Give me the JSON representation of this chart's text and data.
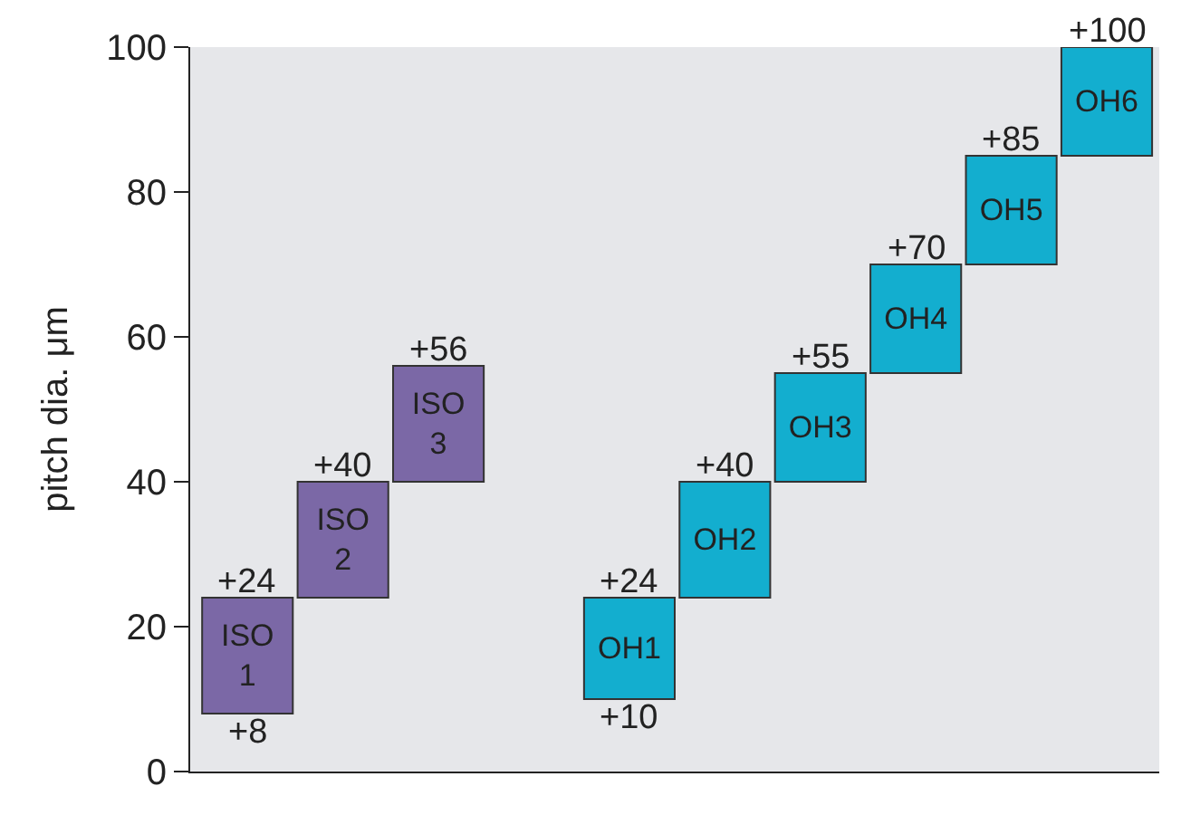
{
  "chart_data": {
    "type": "bar",
    "ylabel": "pitch dia. μm",
    "categories": [
      "ISO\n1",
      "ISO\n2",
      "ISO\n3",
      null,
      "OH1",
      "OH2",
      "OH3",
      "OH4",
      "OH5",
      "OH6"
    ],
    "base": [
      8,
      24,
      40,
      null,
      10,
      24,
      40,
      55,
      70,
      85
    ],
    "values": [
      16,
      16,
      16,
      null,
      14,
      16,
      15,
      15,
      15,
      15
    ],
    "colors": [
      "#7b68a6",
      "#7b68a6",
      "#7b68a6",
      null,
      "#13aecf",
      "#13aecf",
      "#13aecf",
      "#13aecf",
      "#13aecf",
      "#13aecf"
    ],
    "value_labels": [
      "+24",
      "+40",
      "+56",
      null,
      "+24",
      "+40",
      "+55",
      "+70",
      "+85",
      "+100"
    ],
    "annotations": [
      {
        "text": "+8",
        "x": "ISO\n1",
        "y": 8
      },
      {
        "text": "+10",
        "x": "OH1",
        "y": 10
      }
    ],
    "ylim": [
      0,
      100
    ],
    "yticks": [
      0,
      20,
      40,
      60,
      80,
      100
    ],
    "grid": false,
    "legend": false,
    "tick_labels": "y"
  }
}
